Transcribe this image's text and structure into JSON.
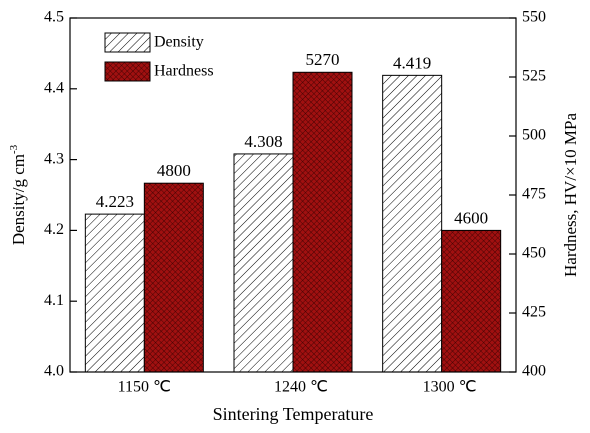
{
  "chart_data": {
    "type": "bar",
    "xlabel": "Sintering Temperature",
    "ylabel": "Density/g cm",
    "ylabel_sup": "-3",
    "y2label": "Hardness, HV/×10 MPa",
    "categories": [
      "1150 ℃",
      "1240 ℃",
      "1300 ℃"
    ],
    "series": [
      {
        "name": "Density",
        "color": "#000000",
        "values": [
          4.223,
          4.308,
          4.419
        ]
      },
      {
        "name": "Hardness",
        "color": "#a01010",
        "axis": "y2",
        "values": [
          480,
          527,
          460
        ],
        "value_labels": [
          "4800",
          "5270",
          "4600"
        ]
      }
    ],
    "ylim": [
      4.0,
      4.5
    ],
    "yticks": [
      {
        "value": 4,
        "label": "4.0"
      },
      4.1,
      4.2,
      4.3,
      4.4,
      4.5
    ],
    "y2lim": [
      400,
      550
    ],
    "y2ticks": [
      400,
      425,
      450,
      475,
      500,
      525,
      550
    ],
    "legend": "upper-left"
  }
}
